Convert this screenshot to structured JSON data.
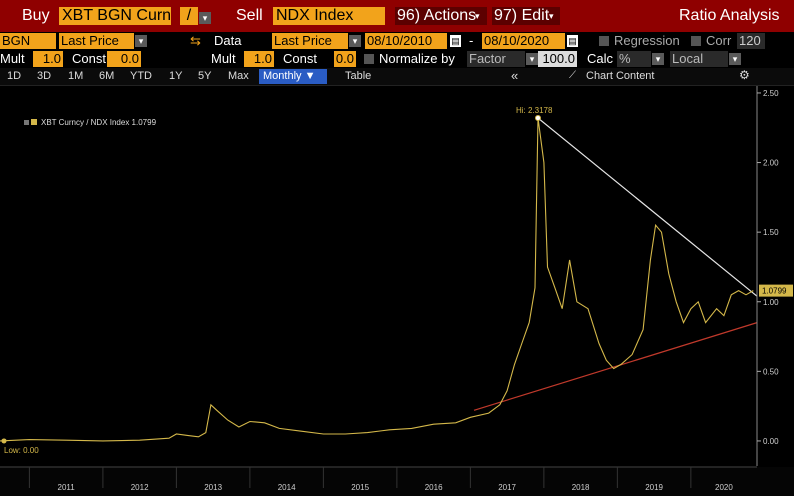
{
  "toolbar": {
    "buy_label": "Buy",
    "buy_ticker": "XBT BGN Curn",
    "operator": "/",
    "sell_label": "Sell",
    "sell_ticker": "NDX Index",
    "actions_label": "96) Actions",
    "edit_label": "97) Edit",
    "title": "Ratio Analysis"
  },
  "row2": {
    "source": "BGN",
    "field": "Last Price",
    "data_label": "Data",
    "data_field": "Last Price",
    "start_date": "08/10/2010",
    "dash": "-",
    "end_date": "08/10/2020",
    "regression_label": "Regression",
    "corr_label": "Corr",
    "corr_value": "120"
  },
  "row3": {
    "mult_label": "Mult",
    "mult_value": "1.0",
    "const_label": "Const",
    "const_value": "0.0",
    "mult2_label": "Mult",
    "mult2_value": "1.0",
    "const2_label": "Const",
    "const2_value": "0.0",
    "normalize_label": "Normalize by",
    "normalize_field": "Factor",
    "normalize_value": "100.0",
    "calc_label": "Calc",
    "calc_value": "%",
    "currency": "Local"
  },
  "row4": {
    "timeframes": [
      "1D",
      "3D",
      "1M",
      "6M",
      "YTD",
      "1Y",
      "5Y",
      "Max"
    ],
    "frequency": "Monthly ▼",
    "table_label": "Table",
    "collapse": "«",
    "chart_content": "Chart Content",
    "gear": "⚙"
  },
  "colors": {
    "series": "#d4b84a",
    "trend_up": "#c0392b",
    "trend_down": "#e6e6e6",
    "header_bg": "#8f0000",
    "field_bg": "#f2a31b"
  },
  "chart_data": {
    "type": "line",
    "legend": "XBT Curncy / NDX Index 1.0799",
    "legend_placement": "top-left",
    "high_label": "Hi: 2.3178",
    "low_label": "Low: 0.00",
    "last_label": "1.0799",
    "ylim": [
      -0.18,
      2.55
    ],
    "y_ticks": [
      0.0,
      0.5,
      1.0,
      1.5,
      2.0,
      2.5
    ],
    "y_tick_labels": [
      "0.00",
      "0.50",
      "1.00",
      "1.50",
      "2.00",
      "2.50"
    ],
    "x_ticks": [
      2011,
      2012,
      2013,
      2014,
      2015,
      2016,
      2017,
      2018,
      2019,
      2020
    ],
    "xlim": [
      2010.6,
      2020.9
    ],
    "series": [
      {
        "values": [
          [
            2010.6,
            0.0
          ],
          [
            2011.0,
            0.01
          ],
          [
            2011.5,
            0.005
          ],
          [
            2012.0,
            0.0
          ],
          [
            2012.5,
            0.005
          ],
          [
            2012.9,
            0.02
          ],
          [
            2013.0,
            0.05
          ],
          [
            2013.15,
            0.04
          ],
          [
            2013.3,
            0.03
          ],
          [
            2013.4,
            0.06
          ],
          [
            2013.47,
            0.26
          ],
          [
            2013.55,
            0.22
          ],
          [
            2013.7,
            0.15
          ],
          [
            2013.85,
            0.1
          ],
          [
            2014.0,
            0.14
          ],
          [
            2014.2,
            0.13
          ],
          [
            2014.4,
            0.09
          ],
          [
            2014.7,
            0.07
          ],
          [
            2015.0,
            0.05
          ],
          [
            2015.3,
            0.05
          ],
          [
            2015.6,
            0.06
          ],
          [
            2015.9,
            0.08
          ],
          [
            2016.2,
            0.09
          ],
          [
            2016.5,
            0.12
          ],
          [
            2016.8,
            0.13
          ],
          [
            2017.0,
            0.17
          ],
          [
            2017.25,
            0.2
          ],
          [
            2017.4,
            0.26
          ],
          [
            2017.5,
            0.36
          ],
          [
            2017.6,
            0.55
          ],
          [
            2017.7,
            0.7
          ],
          [
            2017.8,
            0.85
          ],
          [
            2017.88,
            1.1
          ],
          [
            2017.92,
            2.32
          ],
          [
            2018.0,
            2.0
          ],
          [
            2018.05,
            1.25
          ],
          [
            2018.15,
            1.1
          ],
          [
            2018.25,
            0.95
          ],
          [
            2018.35,
            1.3
          ],
          [
            2018.45,
            1.0
          ],
          [
            2018.6,
            0.95
          ],
          [
            2018.75,
            0.7
          ],
          [
            2018.85,
            0.58
          ],
          [
            2018.95,
            0.52
          ],
          [
            2019.05,
            0.55
          ],
          [
            2019.2,
            0.62
          ],
          [
            2019.35,
            0.8
          ],
          [
            2019.45,
            1.3
          ],
          [
            2019.52,
            1.55
          ],
          [
            2019.6,
            1.5
          ],
          [
            2019.7,
            1.2
          ],
          [
            2019.8,
            1.0
          ],
          [
            2019.9,
            0.85
          ],
          [
            2020.0,
            0.95
          ],
          [
            2020.1,
            1.0
          ],
          [
            2020.2,
            0.85
          ],
          [
            2020.35,
            0.95
          ],
          [
            2020.45,
            0.9
          ],
          [
            2020.55,
            1.05
          ],
          [
            2020.65,
            1.08
          ],
          [
            2020.75,
            1.05
          ],
          [
            2020.85,
            1.08
          ]
        ]
      }
    ],
    "trendlines": [
      {
        "from": [
          2017.05,
          0.22
        ],
        "to": [
          2020.9,
          0.85
        ]
      },
      {
        "from": [
          2017.92,
          2.32
        ],
        "to": [
          2020.9,
          1.04
        ]
      }
    ]
  }
}
